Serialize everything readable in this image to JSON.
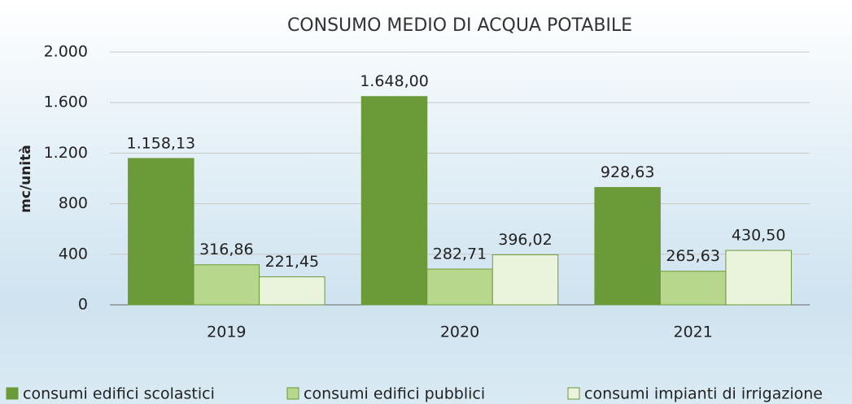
{
  "chart_data": {
    "type": "bar",
    "title": "CONSUMO MEDIO DI ACQUA POTABILE",
    "y_label": "mc/unità",
    "categories": [
      "2019",
      "2020",
      "2021"
    ],
    "series": [
      {
        "name": "consumi edifici scolastici",
        "color": "#6b9a38",
        "values": [
          1158.13,
          1648.0,
          928.63
        ],
        "value_labels": [
          "1.158,13",
          "1.648,00",
          "928,63"
        ]
      },
      {
        "name": "consumi edifici pubblici",
        "color": "#b7d88c",
        "values": [
          316.86,
          282.71,
          265.63
        ],
        "value_labels": [
          "316,86",
          "282,71",
          "265,63"
        ]
      },
      {
        "name": "consumi impianti di irrigazione",
        "color": "#eaf4dc",
        "values": [
          221.45,
          396.02,
          430.5
        ],
        "value_labels": [
          "221,45",
          "396,02",
          "430,50"
        ]
      }
    ],
    "ylim": [
      0,
      2000
    ],
    "yticks": [
      0,
      400,
      800,
      {
        "value": 1200,
        "label": "1.200"
      },
      {
        "value": 1600,
        "label": "1.600"
      },
      {
        "value": 2000,
        "label": "2.000"
      }
    ],
    "grid": true,
    "legend": "bottom"
  }
}
